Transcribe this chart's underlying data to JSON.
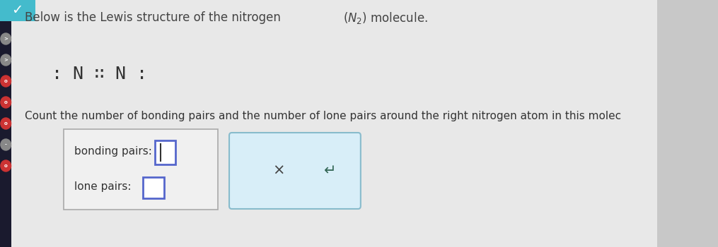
{
  "bg_color": "#c8c8c8",
  "content_bg": "#e8e8e8",
  "title_text": "Below is the Lewis structure of the nitrogen ",
  "title_n2": "$(N_2)$ molecule.",
  "lewis_text": ": N ∷ N :",
  "question_text": "Count the number of bonding pairs and the number of lone pairs around the right nitrogen atom in this molec",
  "bonding_label": "bonding pairs:",
  "lone_label": "lone pairs:",
  "x_symbol": "×",
  "undo_symbol": "↵",
  "left_box_bg": "#f0f0f0",
  "left_box_border": "#aaaaaa",
  "right_box_bg": "#d8eef8",
  "right_box_border": "#88bbcc",
  "input_box_color": "#ffffff",
  "input_border_color": "#5566cc",
  "teal_color": "#44bbcc",
  "sidebar_bg": "#222222",
  "font_size_title": 12,
  "font_size_lewis": 18,
  "font_size_question": 11,
  "font_size_labels": 11,
  "font_size_symbols": 15
}
